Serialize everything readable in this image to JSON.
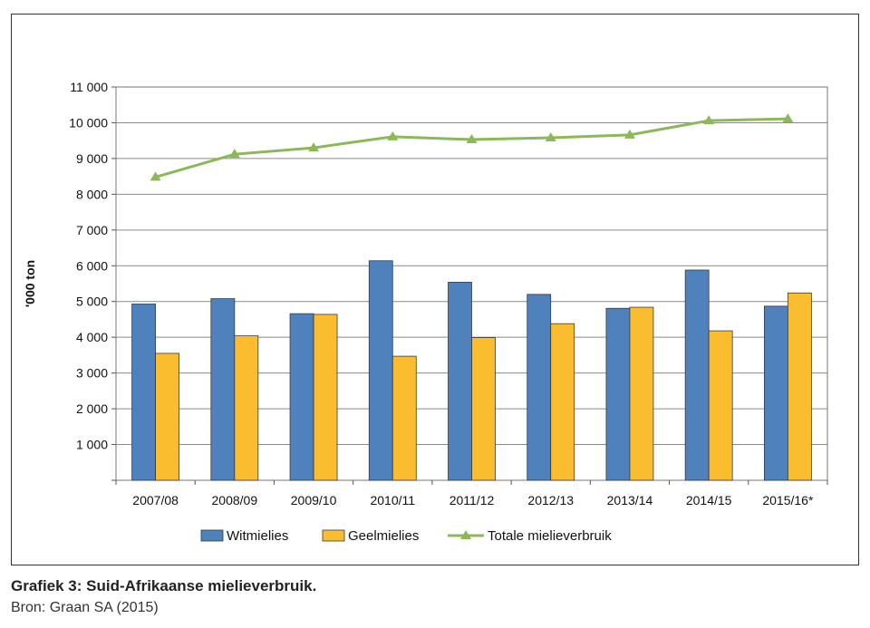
{
  "caption": {
    "title": "Grafiek 3: Suid-Afrikaanse mielieverbruik.",
    "source": "Bron: Graan SA (2015)"
  },
  "chart_data": {
    "type": "bar",
    "ylabel": "'000 ton",
    "xlabel": "",
    "ylim": [
      0,
      11000
    ],
    "yticks": [
      0,
      1000,
      2000,
      3000,
      4000,
      5000,
      6000,
      7000,
      8000,
      9000,
      10000,
      11000
    ],
    "ytick_labels": [
      "",
      "1 000",
      "2 000",
      "3 000",
      "4 000",
      "5 000",
      "6 000",
      "7 000",
      "8 000",
      "9 000",
      "10 000",
      "11 000"
    ],
    "grid": true,
    "legend": "bottom",
    "categories": [
      "2007/08",
      "2008/09",
      "2009/10",
      "2010/11",
      "2011/12",
      "2012/13",
      "2013/14",
      "2014/15",
      "2015/16*"
    ],
    "series": [
      {
        "name": "Witmielies",
        "type": "bar",
        "color": "#4f81bd",
        "values": [
          4930,
          5080,
          4660,
          6140,
          5540,
          5200,
          4810,
          5880,
          4870
        ]
      },
      {
        "name": "Geelmielies",
        "type": "bar",
        "color": "#f9bd2f",
        "values": [
          3550,
          4040,
          4640,
          3470,
          3990,
          4380,
          4840,
          4180,
          5240
        ]
      },
      {
        "name": "Totale mielieverbruik",
        "type": "line",
        "marker": "triangle",
        "color": "#8db859",
        "values": [
          8480,
          9120,
          9300,
          9610,
          9530,
          9580,
          9660,
          10060,
          10110
        ]
      }
    ]
  }
}
